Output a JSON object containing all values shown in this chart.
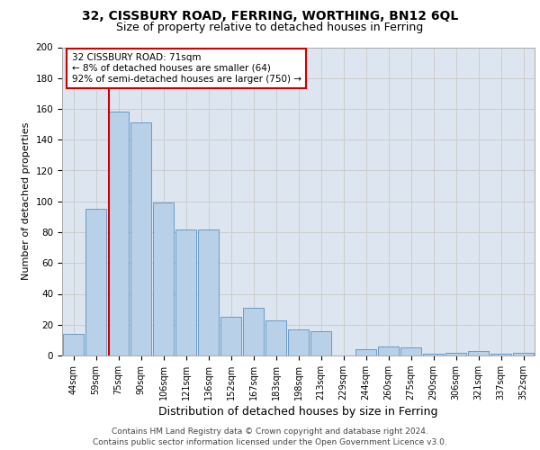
{
  "title1": "32, CISSBURY ROAD, FERRING, WORTHING, BN12 6QL",
  "title2": "Size of property relative to detached houses in Ferring",
  "xlabel": "Distribution of detached houses by size in Ferring",
  "ylabel": "Number of detached properties",
  "categories": [
    "44sqm",
    "59sqm",
    "75sqm",
    "90sqm",
    "106sqm",
    "121sqm",
    "136sqm",
    "152sqm",
    "167sqm",
    "183sqm",
    "198sqm",
    "213sqm",
    "229sqm",
    "244sqm",
    "260sqm",
    "275sqm",
    "290sqm",
    "306sqm",
    "321sqm",
    "337sqm",
    "352sqm"
  ],
  "values": [
    14,
    95,
    158,
    151,
    99,
    82,
    82,
    25,
    31,
    23,
    17,
    16,
    0,
    4,
    6,
    5,
    1,
    2,
    3,
    1,
    2
  ],
  "bar_color": "#b8d0e8",
  "bar_edge_color": "#5a90c0",
  "vline_color": "#cc0000",
  "vline_pos": 1.57,
  "annotation_text": "32 CISSBURY ROAD: 71sqm\n← 8% of detached houses are smaller (64)\n92% of semi-detached houses are larger (750) →",
  "annotation_box_color": "#ffffff",
  "annotation_box_edge": "#cc0000",
  "ylim": [
    0,
    200
  ],
  "yticks": [
    0,
    20,
    40,
    60,
    80,
    100,
    120,
    140,
    160,
    180,
    200
  ],
  "grid_color": "#cccccc",
  "bg_color": "#dde6f0",
  "footer": "Contains HM Land Registry data © Crown copyright and database right 2024.\nContains public sector information licensed under the Open Government Licence v3.0.",
  "title1_fontsize": 10,
  "title2_fontsize": 9,
  "xlabel_fontsize": 9,
  "ylabel_fontsize": 8,
  "tick_fontsize": 7,
  "annotation_fontsize": 7.5,
  "footer_fontsize": 6.5
}
